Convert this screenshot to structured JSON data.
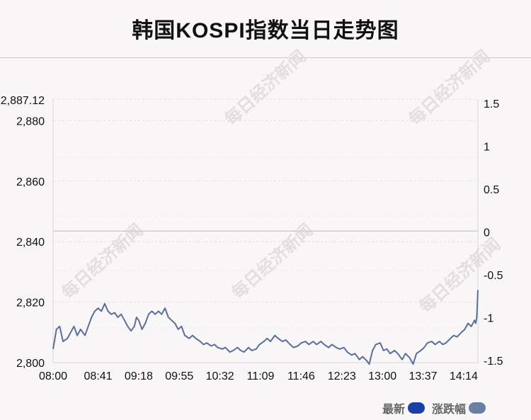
{
  "title": "韩国KOSPI指数当日走势图",
  "watermark": "每日经济新闻",
  "legend": [
    {
      "label": "最新",
      "color": "#1840a8"
    },
    {
      "label": "涨跌幅",
      "color": "#6b7fa6"
    }
  ],
  "chart_data": {
    "type": "line",
    "title": "韩国KOSPI指数当日走势图",
    "x_ticks": [
      "08:00",
      "08:41",
      "09:18",
      "09:55",
      "10:32",
      "11:09",
      "11:46",
      "12:23",
      "13:00",
      "13:37",
      "14:14"
    ],
    "y_left": {
      "ylim": [
        2800,
        2887.12
      ],
      "ticks": [
        "2,800",
        "2,820",
        "2,840",
        "2,860",
        "2,880",
        "2,887.12"
      ]
    },
    "y_right": {
      "ylim": [
        -1.5,
        1.5
      ],
      "ticks": [
        "1.5",
        "1",
        "0.5",
        "0",
        "-0.5",
        "-1",
        "-1.5"
      ]
    },
    "reference_value": 2843.5,
    "series": [
      {
        "color": "#5a6e9a",
        "points": [
          [
            "08:00",
            2804.5
          ],
          [
            "08:03",
            2811
          ],
          [
            "08:06",
            2812
          ],
          [
            "08:09",
            2807
          ],
          [
            "08:13",
            2808
          ],
          [
            "08:16",
            2810
          ],
          [
            "08:19",
            2812
          ],
          [
            "08:22",
            2809
          ],
          [
            "08:25",
            2811
          ],
          [
            "08:29",
            2809
          ],
          [
            "08:32",
            2812
          ],
          [
            "08:35",
            2815
          ],
          [
            "08:38",
            2817
          ],
          [
            "08:41",
            2818
          ],
          [
            "08:44",
            2817
          ],
          [
            "08:47",
            2819.5
          ],
          [
            "08:50",
            2817
          ],
          [
            "08:53",
            2816
          ],
          [
            "08:56",
            2816.5
          ],
          [
            "08:59",
            2815
          ],
          [
            "09:02",
            2816
          ],
          [
            "09:05",
            2814
          ],
          [
            "09:08",
            2812
          ],
          [
            "09:11",
            2810.5
          ],
          [
            "09:14",
            2812
          ],
          [
            "09:16",
            2815
          ],
          [
            "09:18",
            2814
          ],
          [
            "09:21",
            2811
          ],
          [
            "09:24",
            2813
          ],
          [
            "09:27",
            2816
          ],
          [
            "09:30",
            2817
          ],
          [
            "09:33",
            2816
          ],
          [
            "09:36",
            2817
          ],
          [
            "09:39",
            2816
          ],
          [
            "09:42",
            2818
          ],
          [
            "09:45",
            2815
          ],
          [
            "09:48",
            2814
          ],
          [
            "09:51",
            2813
          ],
          [
            "09:54",
            2811
          ],
          [
            "09:57",
            2812
          ],
          [
            "10:00",
            2809
          ],
          [
            "10:04",
            2808
          ],
          [
            "10:07",
            2809
          ],
          [
            "10:10",
            2808
          ],
          [
            "10:14",
            2807
          ],
          [
            "10:17",
            2806
          ],
          [
            "10:20",
            2806.5
          ],
          [
            "10:24",
            2805.5
          ],
          [
            "10:27",
            2806
          ],
          [
            "10:30",
            2805
          ],
          [
            "10:34",
            2804.5
          ],
          [
            "10:37",
            2805
          ],
          [
            "10:41",
            2803.5
          ],
          [
            "10:44",
            2804
          ],
          [
            "10:48",
            2805
          ],
          [
            "10:51",
            2804
          ],
          [
            "10:54",
            2803.5
          ],
          [
            "10:58",
            2805
          ],
          [
            "11:01",
            2804
          ],
          [
            "11:05",
            2804.5
          ],
          [
            "11:08",
            2806
          ],
          [
            "11:12",
            2807
          ],
          [
            "11:15",
            2808
          ],
          [
            "11:18",
            2807
          ],
          [
            "11:22",
            2809
          ],
          [
            "11:25",
            2808
          ],
          [
            "11:29",
            2807
          ],
          [
            "11:32",
            2807.5
          ],
          [
            "11:36",
            2806
          ],
          [
            "11:39",
            2805
          ],
          [
            "11:43",
            2805.5
          ],
          [
            "11:46",
            2806.5
          ],
          [
            "11:50",
            2807
          ],
          [
            "11:53",
            2806
          ],
          [
            "11:57",
            2807
          ],
          [
            "12:00",
            2806
          ],
          [
            "12:04",
            2807
          ],
          [
            "12:07",
            2806
          ],
          [
            "12:11",
            2805
          ],
          [
            "12:14",
            2806
          ],
          [
            "12:18",
            2805
          ],
          [
            "12:21",
            2804.5
          ],
          [
            "12:25",
            2805
          ],
          [
            "12:28",
            2803.5
          ],
          [
            "12:32",
            2802.5
          ],
          [
            "12:35",
            2803
          ],
          [
            "12:39",
            2801
          ],
          [
            "12:42",
            2802
          ],
          [
            "12:46",
            2800.5
          ],
          [
            "12:48",
            2799.5
          ],
          [
            "12:51",
            2804
          ],
          [
            "12:54",
            2806
          ],
          [
            "12:58",
            2806.5
          ],
          [
            "13:01",
            2804
          ],
          [
            "13:04",
            2804.5
          ],
          [
            "13:07",
            2803
          ],
          [
            "13:11",
            2804
          ],
          [
            "13:14",
            2803
          ],
          [
            "13:18",
            2801
          ],
          [
            "13:21",
            2803
          ],
          [
            "13:25",
            2801.5
          ],
          [
            "13:28",
            2799.5
          ],
          [
            "13:31",
            2803
          ],
          [
            "13:35",
            2804
          ],
          [
            "13:38",
            2805
          ],
          [
            "13:41",
            2806.5
          ],
          [
            "13:45",
            2807
          ],
          [
            "13:48",
            2806
          ],
          [
            "13:52",
            2807
          ],
          [
            "13:55",
            2806
          ],
          [
            "13:58",
            2806.5
          ],
          [
            "14:02",
            2808
          ],
          [
            "14:05",
            2809
          ],
          [
            "14:08",
            2808.5
          ],
          [
            "14:12",
            2810
          ],
          [
            "14:15",
            2811
          ],
          [
            "14:18",
            2813
          ],
          [
            "14:21",
            2812
          ],
          [
            "14:24",
            2814
          ],
          [
            "14:25",
            2813
          ],
          [
            "14:26",
            2815
          ],
          [
            "14:27",
            2824
          ]
        ]
      }
    ]
  }
}
